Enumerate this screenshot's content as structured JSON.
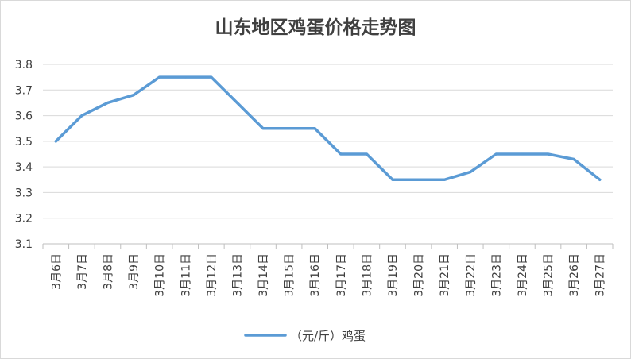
{
  "chart_data": {
    "type": "line",
    "title": "山东地区鸡蛋价格走势图",
    "categories": [
      "3月6日",
      "3月7日",
      "3月8日",
      "3月9日",
      "3月10日",
      "3月11日",
      "3月12日",
      "3月13日",
      "3月14日",
      "3月15日",
      "3月16日",
      "3月17日",
      "3月18日",
      "3月19日",
      "3月20日",
      "3月21日",
      "3月22日",
      "3月23日",
      "3月24日",
      "3月25日",
      "3月26日",
      "3月27日"
    ],
    "series": [
      {
        "name": "（元/斤）鸡蛋",
        "color": "#5b9bd5",
        "values": [
          3.5,
          3.6,
          3.65,
          3.68,
          3.75,
          3.75,
          3.75,
          3.65,
          3.55,
          3.55,
          3.55,
          3.45,
          3.45,
          3.35,
          3.35,
          3.35,
          3.38,
          3.45,
          3.45,
          3.45,
          3.43,
          3.35
        ]
      }
    ],
    "yticks": [
      "3.1",
      "3.2",
      "3.3",
      "3.4",
      "3.5",
      "3.6",
      "3.7",
      "3.8"
    ],
    "ylim": [
      3.1,
      3.8
    ],
    "grid": true,
    "legend_position": "bottom"
  }
}
